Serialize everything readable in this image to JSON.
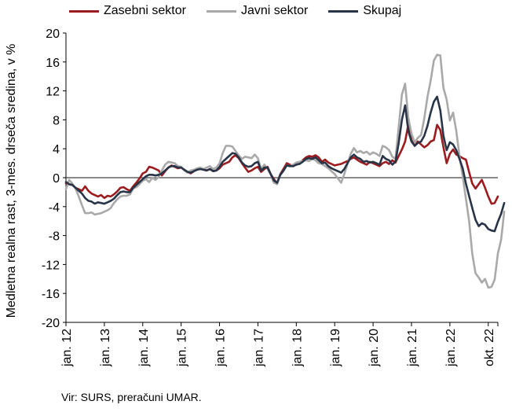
{
  "source": "Vir: SURS, preračuni UMAR.",
  "chart_data": {
    "type": "line",
    "title": "",
    "xlabel": "",
    "ylabel": "Medletna realna rast, 3-mes. drseča sredina, v %",
    "ylim": [
      -20,
      20
    ],
    "yticks": [
      -20,
      -16,
      -12,
      -8,
      -4,
      0,
      4,
      8,
      12,
      16,
      20
    ],
    "x_start": "2012-01",
    "x_end": "2022-10",
    "xtick_labels": [
      "jan. 12",
      "jan. 13",
      "jan. 14",
      "jan. 15",
      "jan. 16",
      "jan. 17",
      "jan. 18",
      "jan. 19",
      "jan. 20",
      "jan. 21",
      "jan. 22",
      "okt. 22"
    ],
    "legend_position": "top",
    "zero_line": true,
    "series": [
      {
        "name": "Zasebni sektor",
        "color": "#9b1b1e",
        "values": [
          -0.8,
          -0.9,
          -1.0,
          -1.4,
          -1.6,
          -1.8,
          -1.2,
          -1.8,
          -2.2,
          -2.4,
          -2.6,
          -2.4,
          -2.8,
          -2.5,
          -2.6,
          -2.3,
          -1.9,
          -1.4,
          -1.3,
          -1.6,
          -1.8,
          -1.2,
          -0.7,
          -0.1,
          0.6,
          0.8,
          1.5,
          1.4,
          1.2,
          1.0,
          0.3,
          0.9,
          1.4,
          1.7,
          1.5,
          1.3,
          1.4,
          1.1,
          0.8,
          0.6,
          0.9,
          1.2,
          1.3,
          1.1,
          1.0,
          1.2,
          0.9,
          1.0,
          1.3,
          1.8,
          2.0,
          2.2,
          2.8,
          3.1,
          2.7,
          2.0,
          1.4,
          0.8,
          1.0,
          1.3,
          1.5,
          0.8,
          1.2,
          1.5,
          0.5,
          -0.2,
          -0.8,
          0.5,
          1.2,
          2.0,
          1.8,
          1.6,
          1.8,
          2.0,
          2.4,
          2.8,
          3.0,
          2.9,
          3.1,
          2.8,
          2.2,
          2.5,
          2.1,
          1.9,
          1.7,
          1.8,
          1.9,
          2.1,
          2.3,
          2.6,
          2.8,
          2.5,
          2.2,
          2.0,
          1.8,
          2.2,
          2.0,
          1.8,
          1.6,
          2.0,
          2.2,
          1.9,
          2.4,
          2.1,
          3.0,
          3.9,
          5.0,
          7.3,
          5.2,
          4.4,
          5.0,
          4.6,
          4.2,
          4.5,
          5.0,
          5.2,
          7.3,
          6.6,
          4.2,
          2.0,
          3.3,
          3.9,
          3.2,
          3.0,
          2.7,
          2.5,
          0.8,
          -0.8,
          -1.5,
          -0.9,
          -0.3,
          -1.4,
          -2.6,
          -3.6,
          -3.5,
          -2.6
        ]
      },
      {
        "name": "Javni sektor",
        "color": "#a9a9a9",
        "values": [
          -1.6,
          -0.3,
          -0.8,
          -1.5,
          -2.6,
          -3.8,
          -4.9,
          -4.9,
          -4.8,
          -5.1,
          -5.0,
          -4.9,
          -4.7,
          -4.5,
          -4.2,
          -3.5,
          -3.0,
          -2.6,
          -2.5,
          -2.5,
          -2.3,
          -1.5,
          -1.3,
          -0.9,
          -0.4,
          -0.2,
          -0.6,
          0.0,
          -0.3,
          0.1,
          1.0,
          1.8,
          2.2,
          2.1,
          2.0,
          1.6,
          1.5,
          1.0,
          0.7,
          1.0,
          1.1,
          1.3,
          1.4,
          1.2,
          1.4,
          1.6,
          1.2,
          1.4,
          2.0,
          3.4,
          4.4,
          4.4,
          4.3,
          3.7,
          3.1,
          2.6,
          2.9,
          2.8,
          2.7,
          3.2,
          2.7,
          1.2,
          1.8,
          1.2,
          0.5,
          -0.7,
          -0.9,
          0.4,
          0.9,
          1.7,
          1.6,
          1.8,
          2.1,
          2.2,
          2.3,
          2.4,
          2.3,
          2.6,
          2.4,
          2.0,
          1.9,
          1.6,
          1.3,
          0.9,
          0.5,
          -0.1,
          -0.7,
          0.5,
          1.9,
          3.3,
          4.1,
          3.5,
          3.7,
          3.4,
          3.6,
          3.2,
          3.5,
          3.3,
          3.0,
          4.4,
          4.2,
          3.8,
          2.9,
          2.6,
          7.0,
          11.5,
          13.0,
          8.3,
          6.1,
          4.9,
          5.5,
          5.9,
          8.2,
          11.2,
          13.4,
          16.2,
          17.0,
          16.9,
          12.4,
          10.8,
          7.9,
          9.0,
          6.5,
          3.0,
          0.2,
          -2.9,
          -5.9,
          -10.5,
          -13.2,
          -13.8,
          -14.5,
          -14.0,
          -15.2,
          -15.1,
          -14.1,
          -10.5,
          -8.6,
          -4.7
        ]
      },
      {
        "name": "Skupaj",
        "color": "#283447",
        "values": [
          -0.6,
          -0.9,
          -1.0,
          -1.4,
          -1.8,
          -2.2,
          -2.8,
          -3.2,
          -3.3,
          -3.6,
          -3.4,
          -3.5,
          -3.6,
          -3.4,
          -3.2,
          -2.9,
          -2.4,
          -2.0,
          -1.9,
          -2.0,
          -2.0,
          -1.4,
          -1.0,
          -0.6,
          -0.2,
          0.2,
          0.4,
          0.4,
          0.3,
          0.4,
          0.6,
          1.0,
          1.4,
          1.6,
          1.6,
          1.4,
          1.4,
          1.1,
          0.8,
          0.7,
          0.9,
          1.1,
          1.2,
          1.1,
          1.0,
          1.2,
          0.9,
          1.0,
          1.5,
          2.2,
          2.6,
          3.0,
          3.4,
          3.3,
          2.8,
          2.1,
          1.7,
          1.5,
          1.6,
          2.0,
          2.2,
          1.0,
          1.4,
          1.4,
          0.5,
          -0.4,
          -0.7,
          0.4,
          1.0,
          1.7,
          1.6,
          1.6,
          1.8,
          1.9,
          2.2,
          2.6,
          2.7,
          2.6,
          2.8,
          2.4,
          2.0,
          2.1,
          1.6,
          1.3,
          1.1,
          0.9,
          0.7,
          1.2,
          2.0,
          2.8,
          3.2,
          2.8,
          2.6,
          2.2,
          2.3,
          2.1,
          2.2,
          2.0,
          1.8,
          3.0,
          2.6,
          2.4,
          1.8,
          2.2,
          4.8,
          8.0,
          10.0,
          6.5,
          5.0,
          4.4,
          4.8,
          5.0,
          5.8,
          7.2,
          9.0,
          10.5,
          11.2,
          9.3,
          5.8,
          3.8,
          4.9,
          4.6,
          3.8,
          2.6,
          1.3,
          -0.8,
          -2.5,
          -4.2,
          -5.8,
          -6.7,
          -6.3,
          -6.5,
          -7.1,
          -7.3,
          -7.4,
          -6.1,
          -5.0,
          -3.5
        ]
      }
    ]
  }
}
